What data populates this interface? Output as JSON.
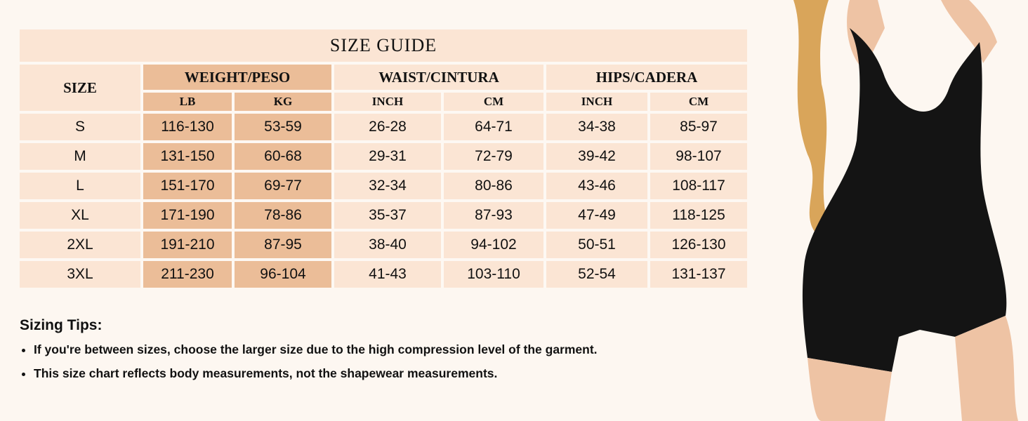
{
  "table": {
    "title": "SIZE GUIDE",
    "size_header": "SIZE",
    "groups": [
      "WEIGHT/PESO",
      "WAIST/CINTURA",
      "HIPS/CADERA"
    ],
    "subheaders": [
      "LB",
      "KG",
      "INCH",
      "CM",
      "INCH",
      "CM"
    ],
    "rows": [
      [
        "S",
        "116-130",
        "53-59",
        "26-28",
        "64-71",
        "34-38",
        "85-97"
      ],
      [
        "M",
        "131-150",
        "60-68",
        "29-31",
        "72-79",
        "39-42",
        "98-107"
      ],
      [
        "L",
        "151-170",
        "69-77",
        "32-34",
        "80-86",
        "43-46",
        "108-117"
      ],
      [
        "XL",
        "171-190",
        "78-86",
        "35-37",
        "87-93",
        "47-49",
        "118-125"
      ],
      [
        "2XL",
        "191-210",
        "87-95",
        "38-40",
        "94-102",
        "50-51",
        "126-130"
      ],
      [
        "3XL",
        "211-230",
        "96-104",
        "41-43",
        "103-110",
        "52-54",
        "131-137"
      ]
    ]
  },
  "tips": {
    "title": "Sizing Tips:",
    "items": [
      "If you're between sizes, choose the larger size due to the high compression level of the garment.",
      "This size chart reflects body measurements, not the shapewear measurements."
    ]
  },
  "colors": {
    "weight_cell": "#ebbd98",
    "cell": "#fbe5d4",
    "background": "#fdf7f1"
  }
}
